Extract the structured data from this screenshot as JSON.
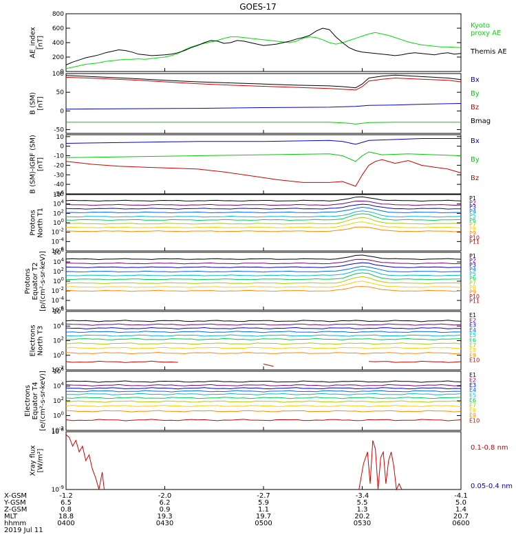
{
  "title": "GOES-17",
  "chart_data": [
    {
      "type": "line",
      "panel": "ae",
      "ylabel": [
        "AE_index",
        "[nT]"
      ],
      "ylim": [
        0,
        800
      ],
      "yticks": [
        "800",
        "600",
        "400",
        "200",
        "0"
      ],
      "yticks_values": [
        800,
        600,
        400,
        200,
        0
      ],
      "series": [
        {
          "name": "Kyoto proxy AE",
          "label_lines": [
            "Kyoto",
            "proxy AE"
          ],
          "color": "#00dd00",
          "x": [
            0,
            10,
            20,
            30,
            40,
            50,
            60,
            70,
            80,
            90,
            100,
            110,
            120,
            130,
            140,
            150,
            160,
            170,
            180,
            190,
            200,
            210,
            220,
            230,
            240,
            250,
            260,
            270,
            280,
            290,
            300,
            310,
            320,
            330,
            340,
            350,
            360,
            370,
            380,
            390,
            400,
            410,
            420,
            430,
            440,
            450,
            460,
            470,
            480,
            490,
            500,
            510,
            520,
            530,
            540,
            550,
            560,
            570,
            580,
            590,
            600
          ],
          "y": [
            40,
            60,
            80,
            100,
            110,
            120,
            140,
            150,
            160,
            170,
            170,
            175,
            170,
            180,
            190,
            200,
            220,
            250,
            300,
            340,
            370,
            390,
            410,
            430,
            460,
            480,
            480,
            470,
            460,
            450,
            440,
            430,
            420,
            410,
            400,
            420,
            460,
            480,
            470,
            440,
            400,
            380,
            400,
            430,
            460,
            490,
            520,
            540,
            520,
            500,
            470,
            440,
            410,
            390,
            370,
            360,
            350,
            340,
            340,
            335,
            330
          ]
        },
        {
          "name": "Themis AE",
          "label_lines": [
            "Themis AE"
          ],
          "color": "#000000",
          "x": [
            0,
            10,
            20,
            30,
            40,
            50,
            60,
            70,
            80,
            90,
            100,
            110,
            120,
            130,
            140,
            150,
            160,
            170,
            180,
            190,
            200,
            210,
            220,
            230,
            240,
            250,
            260,
            270,
            280,
            290,
            300,
            310,
            320,
            330,
            340,
            350,
            360,
            370,
            380,
            390,
            400,
            410,
            420,
            430,
            440,
            450,
            460,
            470,
            480,
            490,
            500,
            510,
            520,
            530,
            540,
            550,
            560,
            570,
            580,
            590,
            600
          ],
          "y": [
            90,
            130,
            160,
            190,
            210,
            230,
            260,
            280,
            300,
            290,
            270,
            240,
            230,
            220,
            225,
            230,
            240,
            260,
            290,
            330,
            360,
            400,
            430,
            420,
            390,
            400,
            430,
            420,
            400,
            380,
            360,
            370,
            380,
            400,
            420,
            450,
            470,
            500,
            560,
            600,
            580,
            480,
            400,
            330,
            290,
            270,
            260,
            250,
            240,
            230,
            220,
            230,
            250,
            260,
            250,
            240,
            230,
            250,
            260,
            240,
            250
          ]
        }
      ]
    },
    {
      "type": "line",
      "panel": "bsm",
      "ylabel": [
        "B (SM)",
        "[nT]"
      ],
      "ylim": [
        -60,
        100
      ],
      "yticks": [
        "100",
        "50",
        "0",
        "-50"
      ],
      "yticks_values": [
        100,
        50,
        0,
        -50
      ],
      "series": [
        {
          "name": "Bx",
          "color": "#0000cc",
          "x": [
            0,
            100,
            200,
            300,
            400,
            440,
            460,
            500,
            540,
            600
          ],
          "y": [
            5,
            6,
            7,
            9,
            10,
            12,
            15,
            16,
            18,
            20
          ]
        },
        {
          "name": "By",
          "color": "#00cc00",
          "x": [
            0,
            100,
            200,
            300,
            400,
            430,
            440,
            460,
            500,
            560,
            600
          ],
          "y": [
            -30,
            -30,
            -30,
            -30,
            -30,
            -33,
            -35,
            -31,
            -30,
            -30,
            -30
          ]
        },
        {
          "name": "Bz",
          "color": "#cc0000",
          "x": [
            0,
            50,
            100,
            150,
            200,
            250,
            300,
            350,
            400,
            420,
            440,
            450,
            460,
            480,
            500,
            540,
            580,
            600
          ],
          "y": [
            90,
            87,
            83,
            78,
            73,
            69,
            66,
            63,
            60,
            58,
            56,
            65,
            80,
            85,
            88,
            85,
            82,
            78
          ]
        },
        {
          "name": "Bmag",
          "color": "#000000",
          "x": [
            0,
            50,
            100,
            150,
            200,
            250,
            300,
            350,
            400,
            420,
            440,
            450,
            460,
            480,
            500,
            540,
            580,
            600
          ],
          "y": [
            95,
            91,
            87,
            82,
            78,
            75,
            72,
            69,
            67,
            65,
            62,
            72,
            88,
            93,
            96,
            92,
            88,
            84
          ]
        }
      ]
    },
    {
      "type": "line",
      "panel": "digrf",
      "ylabel": [
        "B (SM)-IGRF (SM)",
        "[nT]"
      ],
      "ylim": [
        -50,
        12
      ],
      "yticks": [
        "10",
        "0",
        "-10",
        "-20",
        "-30",
        "-40",
        "-50"
      ],
      "yticks_values": [
        10,
        0,
        -10,
        -20,
        -30,
        -40,
        -50
      ],
      "series": [
        {
          "name": "Bx",
          "color": "#0000cc",
          "x": [
            0,
            100,
            200,
            300,
            400,
            420,
            440,
            450,
            460,
            500,
            540,
            600
          ],
          "y": [
            3,
            4,
            5,
            5,
            6,
            5,
            2,
            4,
            6,
            7,
            8,
            8
          ]
        },
        {
          "name": "By",
          "color": "#00cc00",
          "x": [
            0,
            100,
            200,
            300,
            400,
            420,
            440,
            450,
            460,
            480,
            520,
            560,
            600
          ],
          "y": [
            -12,
            -11,
            -10,
            -9,
            -8,
            -10,
            -16,
            -10,
            -6,
            -9,
            -8,
            -9,
            -10
          ]
        },
        {
          "name": "Bz",
          "color": "#cc0000",
          "x": [
            0,
            40,
            80,
            120,
            160,
            200,
            240,
            280,
            320,
            360,
            400,
            420,
            440,
            450,
            460,
            470,
            480,
            500,
            520,
            540,
            560,
            580,
            600
          ],
          "y": [
            -16,
            -19,
            -21,
            -22,
            -23,
            -24,
            -27,
            -31,
            -35,
            -38,
            -38,
            -37,
            -42,
            -30,
            -20,
            -16,
            -14,
            -18,
            -15,
            -20,
            -22,
            -24,
            -28
          ]
        }
      ]
    },
    {
      "type": "line",
      "panel": "p1",
      "yscale": "log",
      "ylabel": [
        "Protons",
        "North T1"
      ],
      "ylim": [
        -6,
        6
      ],
      "yticks": [
        "10^6",
        "10^4",
        "10^2",
        "10^0",
        "10^-2",
        "10^-4",
        "10^-6"
      ],
      "yticks_values": [
        6,
        4,
        2,
        0,
        -2,
        -4,
        -6
      ],
      "series": [
        {
          "name": "P1",
          "color": "#000000",
          "base": 4.7,
          "peak": 0.8
        },
        {
          "name": "P2",
          "color": "#800080",
          "base": 3.8,
          "peak": 0.9
        },
        {
          "name": "P3",
          "color": "#0000cc",
          "base": 3.0,
          "peak": 1.0
        },
        {
          "name": "P4",
          "color": "#0066ff",
          "base": 2.2,
          "peak": 1.1
        },
        {
          "name": "P5",
          "color": "#00bbcc",
          "base": 1.3,
          "peak": 1.2
        },
        {
          "name": "P6",
          "color": "#00cc55",
          "base": 0.6,
          "peak": 1.3
        },
        {
          "name": "P7",
          "color": "#aacc00",
          "base": -0.2,
          "peak": 1.3
        },
        {
          "name": "P8",
          "color": "#ffcc00",
          "base": -1.0,
          "peak": 1.2
        },
        {
          "name": "P9",
          "color": "#ff8800",
          "base": -1.8,
          "peak": 1.0
        },
        {
          "name": "P10",
          "color": "#cc0000",
          "base": null
        },
        {
          "name": "P11",
          "color": "#cc0000",
          "base": null
        }
      ]
    },
    {
      "type": "line",
      "panel": "p2",
      "yscale": "log",
      "ylabel": [
        "Protons",
        "Equator T2",
        "[p/(cm²-s-sr-keV)]"
      ],
      "ylim": [
        -6,
        6
      ],
      "yticks": [
        "10^6",
        "10^4",
        "10^2",
        "10^0",
        "10^-2",
        "10^-4",
        "10^-6"
      ],
      "yticks_values": [
        6,
        4,
        2,
        0,
        -2,
        -4,
        -6
      ],
      "series": [
        {
          "name": "P1",
          "color": "#000000",
          "base": 4.6,
          "peak": 0.8
        },
        {
          "name": "P2",
          "color": "#800080",
          "base": 3.7,
          "peak": 0.9
        },
        {
          "name": "P3",
          "color": "#0000cc",
          "base": 2.9,
          "peak": 1.0
        },
        {
          "name": "P4",
          "color": "#0066ff",
          "base": 2.0,
          "peak": 1.1
        },
        {
          "name": "P5",
          "color": "#00bbcc",
          "base": 1.2,
          "peak": 1.2
        },
        {
          "name": "P6",
          "color": "#00cc55",
          "base": 0.4,
          "peak": 1.3
        },
        {
          "name": "P7",
          "color": "#aacc00",
          "base": -0.4,
          "peak": 1.3
        },
        {
          "name": "P8",
          "color": "#ffcc00",
          "base": -1.2,
          "peak": 1.2
        },
        {
          "name": "P9",
          "color": "#ff8800",
          "base": -2.0,
          "peak": 1.0
        },
        {
          "name": "P10",
          "color": "#cc0000",
          "base": null
        },
        {
          "name": "P11",
          "color": "#cc0000",
          "base": null
        }
      ]
    },
    {
      "type": "line",
      "panel": "e1",
      "yscale": "log",
      "ylabel": [
        "Electrons",
        "North T3"
      ],
      "ylim": [
        -2,
        6
      ],
      "yticks": [
        "10^6",
        "10^4",
        "10^2",
        "10^0",
        "10^-2"
      ],
      "yticks_values": [
        6,
        4,
        2,
        0,
        -2
      ],
      "series": [
        {
          "name": "E1",
          "color": "#000000",
          "base": 4.7
        },
        {
          "name": "E2",
          "color": "#800080",
          "base": 4.2
        },
        {
          "name": "E3",
          "color": "#0000cc",
          "base": 3.7
        },
        {
          "name": "E4",
          "color": "#0066ff",
          "base": 3.2
        },
        {
          "name": "E5",
          "color": "#00bbcc",
          "base": 2.7
        },
        {
          "name": "E6",
          "color": "#00cc55",
          "base": 2.2
        },
        {
          "name": "E7",
          "color": "#aacc00",
          "base": 1.6
        },
        {
          "name": "E8",
          "color": "#ffcc00",
          "base": 1.0
        },
        {
          "name": "E9",
          "color": "#ff8800",
          "base": 0.3
        },
        {
          "name": "E10",
          "color": "#cc0000",
          "base": -0.9
        }
      ]
    },
    {
      "type": "line",
      "panel": "e2",
      "yscale": "log",
      "ylabel": [
        "Electrons",
        "Equator T4",
        "[e/(cm²-s-sr-keV)]"
      ],
      "ylim": [
        -2,
        6
      ],
      "yticks": [
        "10^6",
        "10^4",
        "10^2",
        "10^0",
        "10^-2"
      ],
      "yticks_values": [
        6,
        4,
        2,
        0,
        -2
      ],
      "series": [
        {
          "name": "E1",
          "color": "#000000",
          "base": 4.6
        },
        {
          "name": "E2",
          "color": "#800080",
          "base": 4.1
        },
        {
          "name": "E3",
          "color": "#0000cc",
          "base": 3.7
        },
        {
          "name": "E4",
          "color": "#0066ff",
          "base": 3.3
        },
        {
          "name": "E5",
          "color": "#00bbcc",
          "base": 2.9
        },
        {
          "name": "E6",
          "color": "#00cc55",
          "base": 2.4
        },
        {
          "name": "E7",
          "color": "#aacc00",
          "base": 1.9
        },
        {
          "name": "E8",
          "color": "#ffcc00",
          "base": 1.3
        },
        {
          "name": "E9",
          "color": "#ff8800",
          "base": 0.6
        },
        {
          "name": "E10",
          "color": "#cc0000",
          "base": -0.6
        }
      ]
    },
    {
      "type": "line",
      "panel": "xray",
      "yscale": "log",
      "ylabel": [
        "Xray flux",
        "[W/m²]"
      ],
      "ylim": [
        -9,
        -8
      ],
      "yticks": [
        "10^-8",
        "10^-9"
      ],
      "yticks_values": [
        -8,
        -9
      ],
      "series": [
        {
          "name": "0.1-0.8 nm",
          "color": "#cc0000",
          "segments": [
            {
              "x": [
                0,
                5,
                10,
                15,
                20,
                25,
                30,
                35,
                40,
                45,
                50,
                55,
                58
              ],
              "y": [
                -8.05,
                -8.1,
                -8.25,
                -8.15,
                -8.35,
                -8.25,
                -8.5,
                -8.4,
                -8.65,
                -8.8,
                -9.0,
                -8.7,
                -9.0
              ]
            },
            {
              "x": [
                445,
                452,
                458,
                462,
                466,
                470,
                474,
                478,
                482,
                486,
                490,
                494,
                498,
                502,
                506,
                510
              ],
              "y": [
                -9.0,
                -8.55,
                -8.35,
                -8.9,
                -8.15,
                -8.3,
                -9.0,
                -8.45,
                -8.35,
                -8.9,
                -8.5,
                -8.35,
                -8.6,
                -9.0,
                -8.9,
                -9.0
              ]
            }
          ]
        },
        {
          "name": "0.05-0.4 nm",
          "color": "#0000cc",
          "segments": []
        }
      ]
    }
  ],
  "xaxis": {
    "rows": [
      {
        "label": "X-GSM",
        "values": [
          "-1.2",
          "-2.0",
          "-2.7",
          "-3.4",
          "-4.1"
        ]
      },
      {
        "label": "Y-GSM",
        "values": [
          "6.5",
          "6.2",
          "5.9",
          "5.5",
          "5.0"
        ]
      },
      {
        "label": "Z-GSM",
        "values": [
          "0.8",
          "0.9",
          "1.1",
          "1.3",
          "1.4"
        ]
      },
      {
        "label": "MLT",
        "values": [
          "18.8",
          "19.3",
          "19.7",
          "20.2",
          "20.7"
        ]
      },
      {
        "label": "hhmm",
        "values": [
          "0400",
          "0430",
          "0500",
          "0530",
          "0600"
        ]
      }
    ],
    "date": "2019 Jul 11",
    "tick_values": [
      0,
      150,
      300,
      450,
      600
    ]
  }
}
